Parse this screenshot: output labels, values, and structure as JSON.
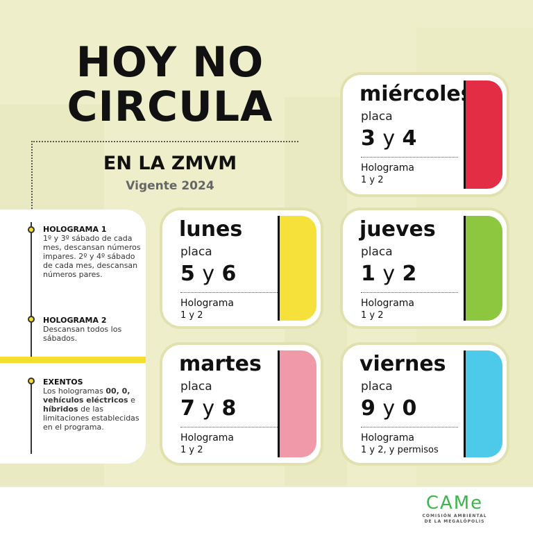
{
  "header": {
    "title_line1": "HOY NO",
    "title_line2": "CIRCULA",
    "subtitle": "EN LA ZMVM",
    "validity": "Vigente 2024"
  },
  "notes": [
    {
      "heading": "HOLOGRAMA 1",
      "text": "1º y 3º sábado de cada mes, descansan números impares. 2º y 4º sábado de cada mes, descansan números pares."
    },
    {
      "heading": "HOLOGRAMA 2",
      "text": "Descansan todos los sábados."
    },
    {
      "heading": "EXENTOS",
      "parts": [
        "Los hologramas ",
        "00, 0, vehículos eléctricos",
        " e ",
        "híbridos",
        " de las limitaciones establecidas en el programa."
      ]
    }
  ],
  "cards": {
    "miercoles": {
      "day": "miércoles",
      "placa": "placa",
      "a": "3",
      "y": "y",
      "b": "4",
      "holo": "Holograma",
      "hv": "1 y 2",
      "color": "#e22d44"
    },
    "lunes": {
      "day": "lunes",
      "placa": "placa",
      "a": "5",
      "y": "y",
      "b": "6",
      "holo": "Holograma",
      "hv": "1 y 2",
      "color": "#f6e03a"
    },
    "jueves": {
      "day": "jueves",
      "placa": "placa",
      "a": "1",
      "y": "y",
      "b": "2",
      "holo": "Holograma",
      "hv": "1 y 2",
      "color": "#8dc63f"
    },
    "martes": {
      "day": "martes",
      "placa": "placa",
      "a": "7",
      "y": "y",
      "b": "8",
      "holo": "Holograma",
      "hv": "1 y 2",
      "color": "#f09aa9"
    },
    "viernes": {
      "day": "viernes",
      "placa": "placa",
      "a": "9",
      "y": "y",
      "b": "0",
      "holo": "Holograma",
      "hv": "1 y 2, y permisos",
      "color": "#4dc9ea"
    }
  },
  "logo": {
    "mark": "CAMe",
    "line1": "COMISIÓN AMBIENTAL",
    "line2": "DE LA MEGALÓPOLIS"
  }
}
